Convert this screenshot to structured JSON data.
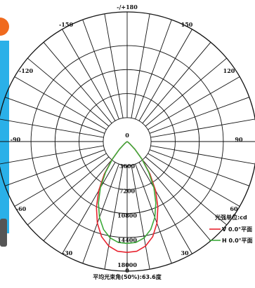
{
  "colors": {
    "grid": "#111111",
    "v_plane": "#e8232f",
    "h_plane": "#3daa3a",
    "strip_blue": "#2ab0e8",
    "strip_orange": "#f06a1e"
  },
  "chart_data": {
    "type": "polar",
    "unit_label": "光强单位:cd",
    "beam_angle_label": "平均光束角(50%):63.6度",
    "angle_labels": [
      "-/+180",
      "-150",
      "150",
      "-120",
      "120",
      "-90",
      "90",
      "-60",
      "60",
      "-30",
      "30",
      "0",
      "0"
    ],
    "radial_ticks": [
      "3600",
      "7200",
      "10800",
      "14400",
      "18000"
    ],
    "rmax": 18000,
    "series": [
      {
        "name": "V 0.0°平面",
        "points": [
          [
            0,
            16200
          ],
          [
            5,
            16100
          ],
          [
            10,
            15500
          ],
          [
            15,
            14400
          ],
          [
            20,
            12700
          ],
          [
            25,
            10600
          ],
          [
            30,
            8300
          ],
          [
            35,
            5800
          ],
          [
            40,
            3400
          ],
          [
            45,
            1600
          ],
          [
            50,
            500
          ],
          [
            55,
            100
          ],
          [
            60,
            0
          ]
        ]
      },
      {
        "name": "H 0.0°平面",
        "points": [
          [
            0,
            14900
          ],
          [
            5,
            14800
          ],
          [
            10,
            14300
          ],
          [
            15,
            13300
          ],
          [
            20,
            11800
          ],
          [
            25,
            9900
          ],
          [
            30,
            7800
          ],
          [
            35,
            5500
          ],
          [
            40,
            3300
          ],
          [
            45,
            1600
          ],
          [
            50,
            500
          ],
          [
            55,
            100
          ],
          [
            60,
            0
          ]
        ]
      }
    ]
  }
}
